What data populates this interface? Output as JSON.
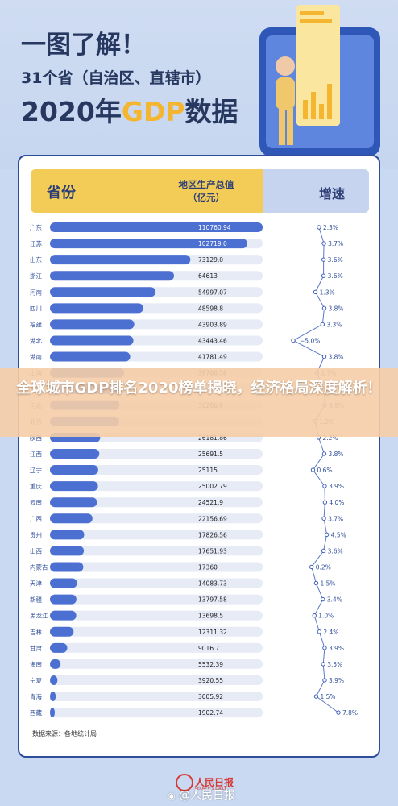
{
  "header": {
    "line1": "一图了解！",
    "line2": "31个省（自治区、直辖市）",
    "line3_year": "2020年",
    "line3_gdp": "GDP",
    "line3_tail": "数据"
  },
  "table_header": {
    "province": "省份",
    "gdp_line1": "地区生产总值",
    "gdp_line2": "（亿元）",
    "growth": "增速"
  },
  "colors": {
    "background": "#c9d9f1",
    "navy": "#2e4d9a",
    "bar_blue": "#4c6fd2",
    "header_yellow": "#f3cc57",
    "header_blue": "#c6d4ef",
    "accent_yellow": "#f4b631",
    "banner_overlay": "#f6cda7"
  },
  "chart_data": {
    "type": "bar",
    "orientation": "horizontal",
    "categories": [
      "广东",
      "江苏",
      "山东",
      "浙江",
      "河南",
      "四川",
      "福建",
      "湖北",
      "湖南",
      "上海",
      "安徽",
      "河北",
      "北京",
      "陕西",
      "江西",
      "辽宁",
      "重庆",
      "云南",
      "广西",
      "贵州",
      "山西",
      "内蒙古",
      "天津",
      "新疆",
      "黑龙江",
      "吉林",
      "甘肃",
      "海南",
      "宁夏",
      "青海",
      "西藏"
    ],
    "series": [
      {
        "values": [
          110760.94,
          102719.0,
          73129.0,
          64613,
          54997.07,
          48598.8,
          43903.89,
          43443.46,
          41781.49,
          38700.58,
          36000,
          36206.9,
          36102.6,
          26181.86,
          25691.5,
          25115,
          25002.79,
          24521.9,
          22156.69,
          17826.56,
          17651.93,
          17360,
          14083.73,
          13797.58,
          13698.5,
          12311.32,
          9016.7,
          5532.39,
          3920.55,
          3005.92,
          1902.74
        ],
        "labels": [
          "110760.94",
          "102719.0",
          "73129.0",
          "64613",
          "54997.07",
          "48598.8",
          "43903.89",
          "43443.46",
          "41781.49",
          "38700.58",
          "",
          "36206.9",
          "",
          "26181.86",
          "25691.5",
          "25115",
          "25002.79",
          "24521.9",
          "22156.69",
          "17826.56",
          "17651.93",
          "17360",
          "14083.73",
          "13797.58",
          "13698.5",
          "12311.32",
          "9016.7",
          "5532.39",
          "3920.55",
          "3005.92",
          "1902.74"
        ]
      },
      {
        "values": [
          2.3,
          3.7,
          3.6,
          3.6,
          1.3,
          3.8,
          3.3,
          -5.0,
          3.8,
          1.7,
          3.9,
          3.9,
          1.2,
          2.2,
          3.8,
          0.6,
          3.9,
          4.0,
          3.7,
          4.5,
          3.6,
          0.2,
          1.5,
          3.4,
          1.0,
          2.4,
          3.9,
          3.5,
          3.9,
          1.5,
          7.8
        ],
        "labels": [
          "2.3%",
          "3.7%",
          "3.6%",
          "3.6%",
          "1.3%",
          "3.8%",
          "3.3%",
          "−5.0%",
          "3.8%",
          "1.7%",
          "",
          "3.9%",
          "1.2%",
          "2.2%",
          "3.8%",
          "0.6%",
          "3.9%",
          "4.0%",
          "3.7%",
          "4.5%",
          "3.6%",
          "0.2%",
          "1.5%",
          "3.4%",
          "1.0%",
          "2.4%",
          "3.9%",
          "3.5%",
          "3.9%",
          "1.5%",
          "7.8%"
        ]
      }
    ],
    "xlim": [
      0,
      110760.94
    ],
    "growth_range": [
      -5.0,
      7.8
    ],
    "grid": false,
    "legend": "none"
  },
  "footer": {
    "source": "数据来源：各地统计局",
    "logo_name": "人民日报",
    "logo_sub": "PEOPLE'S DAILY",
    "watermark": "@人民日报"
  },
  "banner": {
    "text": "全球城市GDP排名2020榜单揭晓，经济格局深度解析！"
  }
}
